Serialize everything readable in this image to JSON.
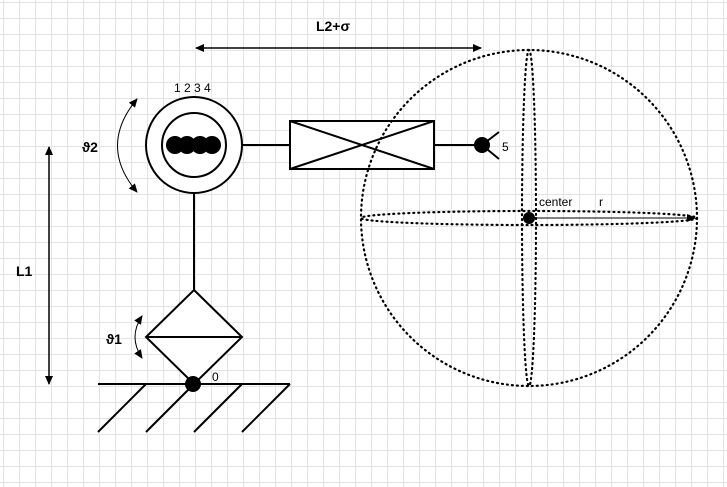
{
  "labels": {
    "length_l2_sigma": "L2+σ",
    "length_l1": "L1",
    "angle_theta2": "ϑ2",
    "angle_theta1": "ϑ1",
    "joint_numbers": "1 2 3 4",
    "joint_5": "5",
    "joint_0": "0",
    "sphere_center": "center",
    "sphere_radius": "r"
  }
}
